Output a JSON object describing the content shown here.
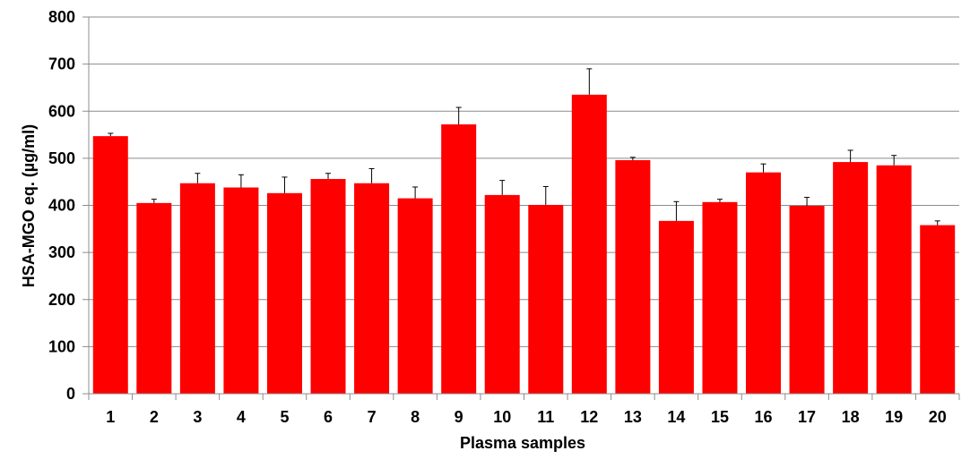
{
  "chart_data": {
    "type": "bar",
    "title": "",
    "xlabel": "Plasma samples",
    "ylabel": "HSA-MGO eq. (µg/ml)",
    "ylim": [
      0,
      800
    ],
    "yticks": [
      "0",
      "100",
      "200",
      "300",
      "400",
      "500",
      "600",
      "700",
      "800"
    ],
    "grid": "horizontal",
    "legend": "none",
    "categories": [
      "1",
      "2",
      "3",
      "4",
      "5",
      "6",
      "7",
      "8",
      "9",
      "10",
      "11",
      "12",
      "13",
      "14",
      "15",
      "16",
      "17",
      "18",
      "19",
      "20"
    ],
    "values": [
      547,
      405,
      447,
      438,
      426,
      456,
      447,
      415,
      572,
      422,
      401,
      635,
      496,
      367,
      407,
      470,
      399,
      492,
      485,
      358
    ],
    "errors": [
      6,
      8,
      21,
      27,
      34,
      12,
      31,
      24,
      36,
      31,
      39,
      55,
      6,
      41,
      6,
      18,
      18,
      25,
      21,
      9
    ],
    "bar_color": "#ff0000",
    "error_bar_color": "#000000"
  }
}
